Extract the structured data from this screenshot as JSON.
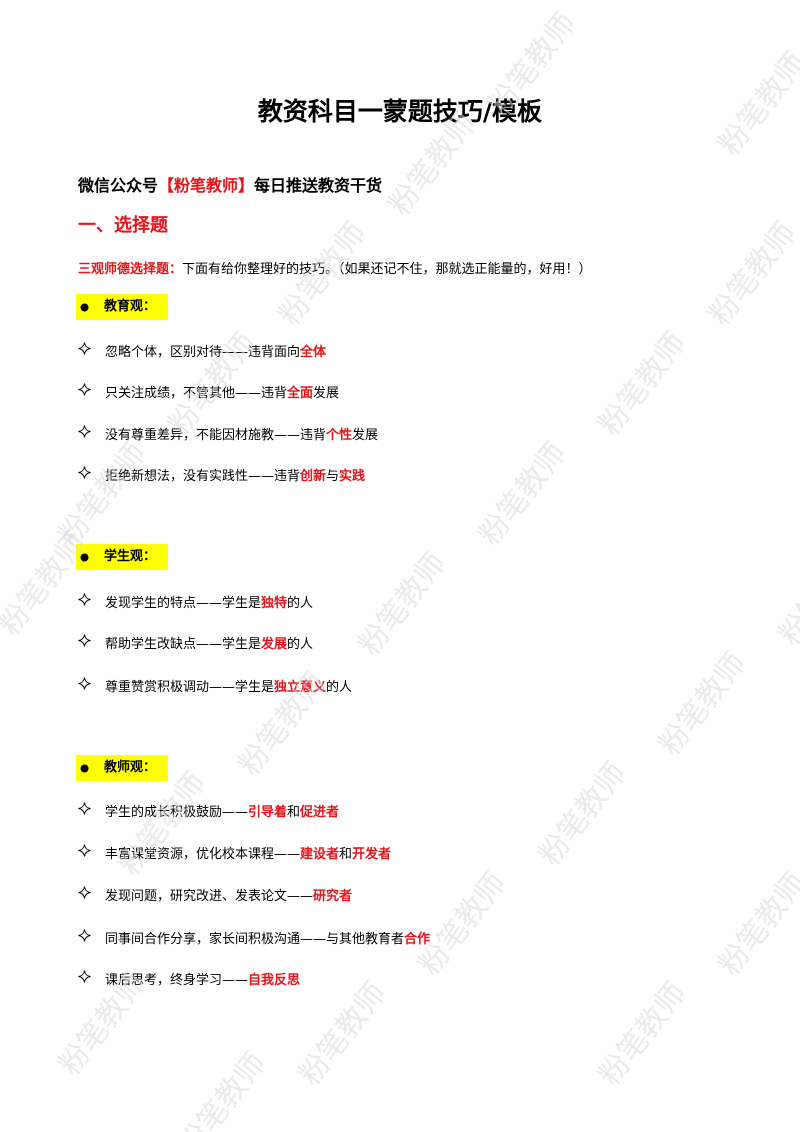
{
  "watermark": "粉笔教师",
  "header": {
    "title": "教资科目一蒙题技巧/模板",
    "subtitle": {
      "prefix": "微信公众号",
      "highlight": "【粉笔教师】",
      "suffix": "每日推送教资干货"
    }
  },
  "section": {
    "heading": "一、选择题",
    "intro": {
      "label": "三观师德选择题：",
      "text": "下面有给你整理好的技巧。（如果还记不住，那就选正能量的，好用！）"
    },
    "groups": [
      {
        "heading": "教育观：",
        "items": [
          {
            "segments": [
              {
                "text": "忽略个体，区别对待——违背面向",
                "em": false
              },
              {
                "text": "全体",
                "em": true
              }
            ]
          },
          {
            "segments": [
              {
                "text": "只关注成绩，不管其他——违背",
                "em": false
              },
              {
                "text": "全面",
                "em": true
              },
              {
                "text": "发展",
                "em": false
              }
            ]
          },
          {
            "segments": [
              {
                "text": "没有尊重差异，不能因材施教——违背",
                "em": false
              },
              {
                "text": "个性",
                "em": true
              },
              {
                "text": "发展",
                "em": false
              }
            ]
          },
          {
            "segments": [
              {
                "text": "拒绝新想法，没有实践性——违背",
                "em": false
              },
              {
                "text": "创新",
                "em": true
              },
              {
                "text": "与",
                "em": false
              },
              {
                "text": "实践",
                "em": true
              }
            ]
          }
        ]
      },
      {
        "heading": "学生观：",
        "items": [
          {
            "segments": [
              {
                "text": "发现学生的特点——学生是",
                "em": false
              },
              {
                "text": "独特",
                "em": true
              },
              {
                "text": "的人",
                "em": false
              }
            ]
          },
          {
            "segments": [
              {
                "text": "帮助学生改缺点——学生是",
                "em": false
              },
              {
                "text": "发展",
                "em": true
              },
              {
                "text": "的人",
                "em": false
              }
            ]
          },
          {
            "segments": [
              {
                "text": "尊重赞赏积极调动——学生是",
                "em": false
              },
              {
                "text": "独立意义",
                "em": true
              },
              {
                "text": "的人",
                "em": false
              }
            ]
          }
        ]
      },
      {
        "heading": "教师观：",
        "items": [
          {
            "segments": [
              {
                "text": "学生的成长积极鼓励——",
                "em": false
              },
              {
                "text": "引导着",
                "em": true
              },
              {
                "text": "和",
                "em": false
              },
              {
                "text": "促进者",
                "em": true
              }
            ]
          },
          {
            "segments": [
              {
                "text": "丰富课堂资源，优化校本课程——",
                "em": false
              },
              {
                "text": "建设者",
                "em": true
              },
              {
                "text": "和",
                "em": false
              },
              {
                "text": "开发者",
                "em": true
              }
            ]
          },
          {
            "segments": [
              {
                "text": "发现问题，研究改进、发表论文——",
                "em": false
              },
              {
                "text": "研究者",
                "em": true
              }
            ]
          },
          {
            "segments": [
              {
                "text": "同事间合作分享，家长间积极沟通——与其他教育者",
                "em": false
              },
              {
                "text": "合作",
                "em": true
              }
            ]
          },
          {
            "segments": [
              {
                "text": "课后思考，终身学习——",
                "em": false
              },
              {
                "text": "自我反思",
                "em": true
              }
            ]
          }
        ]
      }
    ]
  }
}
